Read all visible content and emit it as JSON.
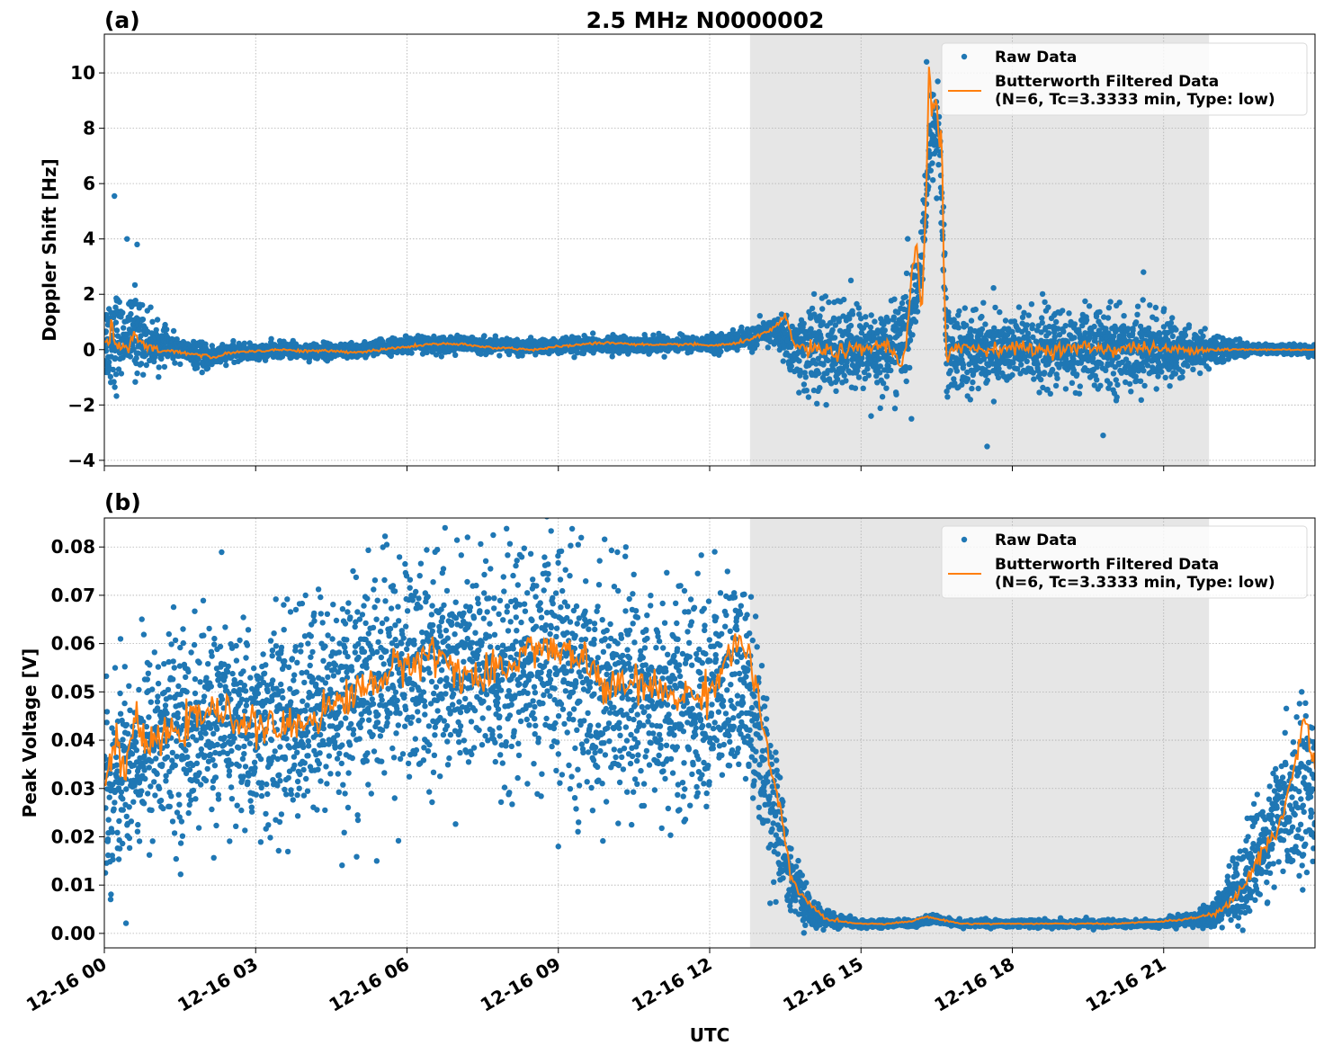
{
  "figure": {
    "title": "2.5 MHz N0000002",
    "xlabel": "UTC",
    "xtick_labels": [
      "12-16 00",
      "12-16 03",
      "12-16 06",
      "12-16 09",
      "12-16 12",
      "12-16 15",
      "12-16 18",
      "12-16 21"
    ],
    "colors": {
      "raw": "#1f77b4",
      "filtered": "#ff7f0e",
      "night_shading": "#e6e6e6",
      "grid": "#b0b0b0"
    }
  },
  "chart_data": [
    {
      "type": "scatter",
      "panel_label": "(a)",
      "title": "2.5 MHz N0000002",
      "xlabel": "",
      "ylabel": "Doppler Shift [Hz]",
      "x_unit": "hours UTC on 12-16",
      "xlim": [
        0,
        24
      ],
      "ylim": [
        -4.2,
        11.4
      ],
      "yticks": [
        -4,
        -2,
        0,
        2,
        4,
        6,
        8,
        10
      ],
      "ytick_labels": [
        "−4",
        "−2",
        "0",
        "2",
        "4",
        "6",
        "8",
        "10"
      ],
      "grid": true,
      "legend_position": "top-right",
      "shaded_interval": [
        12.8,
        21.9
      ],
      "series": [
        {
          "name": "Raw Data",
          "style": "markers",
          "x": [
            0,
            0.2,
            0.4,
            0.6,
            0.8,
            1,
            1.5,
            2,
            2.5,
            3,
            3.5,
            4,
            5,
            6,
            7,
            8,
            9,
            10,
            11,
            12,
            12.8,
            13.3,
            13.7,
            14,
            14.5,
            15,
            15.5,
            15.9,
            16.2,
            16.4,
            16.55,
            16.7,
            17,
            17.5,
            18,
            18.5,
            19,
            19.5,
            20,
            20.5,
            21,
            21.5,
            22,
            22.5,
            23,
            23.5,
            24
          ],
          "y_center": [
            0.3,
            0.5,
            0.4,
            0.6,
            0.4,
            0.2,
            0,
            -0.3,
            -0.1,
            -0.1,
            0,
            -0.05,
            -0.05,
            0.2,
            0.2,
            0.1,
            0.1,
            0.2,
            0.2,
            0.2,
            0.4,
            0.7,
            0,
            0,
            0,
            0,
            0,
            0.5,
            3,
            8,
            8,
            0,
            0,
            0,
            0,
            0,
            0,
            0,
            0,
            0,
            0,
            0,
            0,
            0,
            0,
            0,
            0
          ],
          "y_spread": [
            1.5,
            2.3,
            0.8,
            1.8,
            1.2,
            0.8,
            0.4,
            0.5,
            0.3,
            0.3,
            0.3,
            0.3,
            0.3,
            0.3,
            0.3,
            0.3,
            0.3,
            0.3,
            0.3,
            0.3,
            0.4,
            0.5,
            1.4,
            1.8,
            1.8,
            1.6,
            1.5,
            2,
            1.2,
            1.8,
            1.8,
            1.9,
            1.6,
            1.5,
            1.5,
            1.5,
            1.5,
            1.5,
            1.5,
            1.5,
            1.2,
            1,
            0.5,
            0.3,
            0.2,
            0.2,
            0.2
          ],
          "outliers": [
            [
              0.2,
              5.55
            ],
            [
              0.45,
              4.0
            ],
            [
              0.65,
              3.8
            ],
            [
              17.5,
              -3.5
            ],
            [
              19.8,
              -3.1
            ],
            [
              14.8,
              2.5
            ],
            [
              15.2,
              -2.4
            ],
            [
              16.0,
              -2.5
            ],
            [
              20.6,
              2.8
            ],
            [
              16.3,
              10.4
            ]
          ]
        },
        {
          "name": "Butterworth Filtered Data\n(N=6, Tc=3.3333 min, Type: low)",
          "style": "line",
          "x": [
            0,
            0.1,
            0.15,
            0.2,
            0.3,
            0.5,
            0.6,
            0.7,
            0.8,
            1,
            1.5,
            2,
            2.2,
            2.5,
            3,
            3.5,
            4,
            4.5,
            5,
            5.5,
            6,
            6.5,
            7,
            7.5,
            8,
            8.5,
            9,
            9.5,
            10,
            10.5,
            11,
            11.5,
            12,
            12.5,
            12.8,
            13,
            13.3,
            13.5,
            13.7,
            14,
            14.5,
            15,
            15.5,
            15.8,
            15.9,
            16.0,
            16.1,
            16.2,
            16.3,
            16.35,
            16.4,
            16.5,
            16.55,
            16.6,
            16.65,
            16.7,
            16.8,
            17,
            17.5,
            18,
            18.5,
            19,
            19.5,
            20,
            20.5,
            21,
            21.5,
            22,
            22.5,
            23,
            23.5,
            24
          ],
          "y": [
            0.3,
            0.1,
            1.2,
            0.2,
            0.2,
            0.0,
            0.6,
            0.3,
            0.1,
            0.0,
            -0.1,
            -0.2,
            -0.3,
            -0.1,
            -0.05,
            0.0,
            -0.05,
            -0.05,
            -0.1,
            0.0,
            0.1,
            0.2,
            0.2,
            0.1,
            0.05,
            0.0,
            0.1,
            0.2,
            0.25,
            0.2,
            0.15,
            0.2,
            0.15,
            0.2,
            0.4,
            0.5,
            0.8,
            1.2,
            0.1,
            0.0,
            -0.1,
            0.0,
            0.2,
            -0.5,
            0.3,
            2.5,
            4.0,
            1.0,
            6.0,
            10.6,
            8.5,
            9.0,
            7.0,
            8.0,
            2.0,
            -0.5,
            0.2,
            0.1,
            0.0,
            0.1,
            0.0,
            0.0,
            0.1,
            0.0,
            0.1,
            0.0,
            0.0,
            0.0,
            0.0,
            0.0,
            0.0,
            0.0
          ]
        }
      ]
    },
    {
      "type": "scatter",
      "panel_label": "(b)",
      "title": "",
      "xlabel": "UTC",
      "ylabel": "Peak Voltage [V]",
      "x_unit": "hours UTC on 12-16",
      "xlim": [
        0,
        24
      ],
      "ylim": [
        -0.003,
        0.086
      ],
      "yticks": [
        0.0,
        0.01,
        0.02,
        0.03,
        0.04,
        0.05,
        0.06,
        0.07,
        0.08
      ],
      "ytick_labels": [
        "0.00",
        "0.01",
        "0.02",
        "0.03",
        "0.04",
        "0.05",
        "0.06",
        "0.07",
        "0.08"
      ],
      "grid": true,
      "legend_position": "top-right",
      "shaded_interval": [
        12.8,
        21.9
      ],
      "series": [
        {
          "name": "Raw Data",
          "style": "markers",
          "x": [
            0,
            0.5,
            1,
            1.5,
            2,
            2.5,
            3,
            3.5,
            4,
            4.5,
            5,
            5.5,
            6,
            6.5,
            7,
            7.5,
            8,
            8.5,
            9,
            9.5,
            10,
            10.5,
            11,
            11.5,
            12,
            12.5,
            12.8,
            13,
            13.2,
            13.5,
            13.8,
            14,
            14.5,
            15,
            16,
            16.5,
            17,
            18,
            19,
            20,
            21,
            21.5,
            22,
            22.5,
            23,
            23.5,
            24
          ],
          "y_center": [
            0.03,
            0.036,
            0.04,
            0.042,
            0.043,
            0.044,
            0.042,
            0.043,
            0.045,
            0.048,
            0.05,
            0.053,
            0.055,
            0.056,
            0.055,
            0.054,
            0.054,
            0.056,
            0.056,
            0.052,
            0.05,
            0.05,
            0.048,
            0.048,
            0.048,
            0.052,
            0.05,
            0.04,
            0.03,
            0.015,
            0.008,
            0.004,
            0.0025,
            0.002,
            0.002,
            0.003,
            0.002,
            0.002,
            0.002,
            0.002,
            0.002,
            0.003,
            0.004,
            0.01,
            0.018,
            0.028,
            0.033
          ],
          "y_spread": [
            0.02,
            0.022,
            0.022,
            0.022,
            0.022,
            0.022,
            0.022,
            0.024,
            0.024,
            0.025,
            0.025,
            0.025,
            0.025,
            0.025,
            0.026,
            0.026,
            0.026,
            0.026,
            0.026,
            0.026,
            0.025,
            0.024,
            0.024,
            0.024,
            0.024,
            0.024,
            0.022,
            0.02,
            0.018,
            0.01,
            0.006,
            0.003,
            0.0015,
            0.0008,
            0.0008,
            0.001,
            0.0008,
            0.0008,
            0.0008,
            0.0008,
            0.0008,
            0.0015,
            0.003,
            0.008,
            0.012,
            0.016,
            0.022
          ],
          "outliers": [
            [
              5.4,
              0.015
            ],
            [
              7.2,
              0.082
            ],
            [
              9.0,
              0.018
            ],
            [
              12.1,
              0.079
            ]
          ]
        },
        {
          "name": "Butterworth Filtered Data\n(N=6, Tc=3.3333 min, Type: low)",
          "style": "line",
          "x": [
            0,
            0.2,
            0.4,
            0.6,
            0.8,
            1,
            1.5,
            2,
            2.5,
            3,
            3.5,
            4,
            4.5,
            5,
            5.5,
            6,
            6.5,
            7,
            7.5,
            8,
            8.5,
            9,
            9.5,
            10,
            10.5,
            11,
            11.5,
            12,
            12.5,
            12.8,
            13,
            13.2,
            13.4,
            13.6,
            13.8,
            14,
            14.3,
            14.6,
            15,
            15.5,
            16,
            16.3,
            16.5,
            17,
            17.5,
            18,
            19,
            20,
            21,
            21.5,
            22,
            22.3,
            22.6,
            23,
            23.3,
            23.6,
            23.8,
            24
          ],
          "y": [
            0.03,
            0.04,
            0.033,
            0.045,
            0.038,
            0.04,
            0.042,
            0.046,
            0.045,
            0.043,
            0.042,
            0.044,
            0.047,
            0.05,
            0.053,
            0.056,
            0.058,
            0.055,
            0.052,
            0.055,
            0.06,
            0.058,
            0.057,
            0.05,
            0.052,
            0.05,
            0.049,
            0.05,
            0.06,
            0.058,
            0.045,
            0.035,
            0.025,
            0.012,
            0.008,
            0.006,
            0.003,
            0.0025,
            0.002,
            0.002,
            0.0025,
            0.0035,
            0.003,
            0.002,
            0.002,
            0.002,
            0.002,
            0.002,
            0.0025,
            0.003,
            0.004,
            0.006,
            0.01,
            0.018,
            0.022,
            0.035,
            0.045,
            0.033
          ]
        }
      ]
    }
  ]
}
